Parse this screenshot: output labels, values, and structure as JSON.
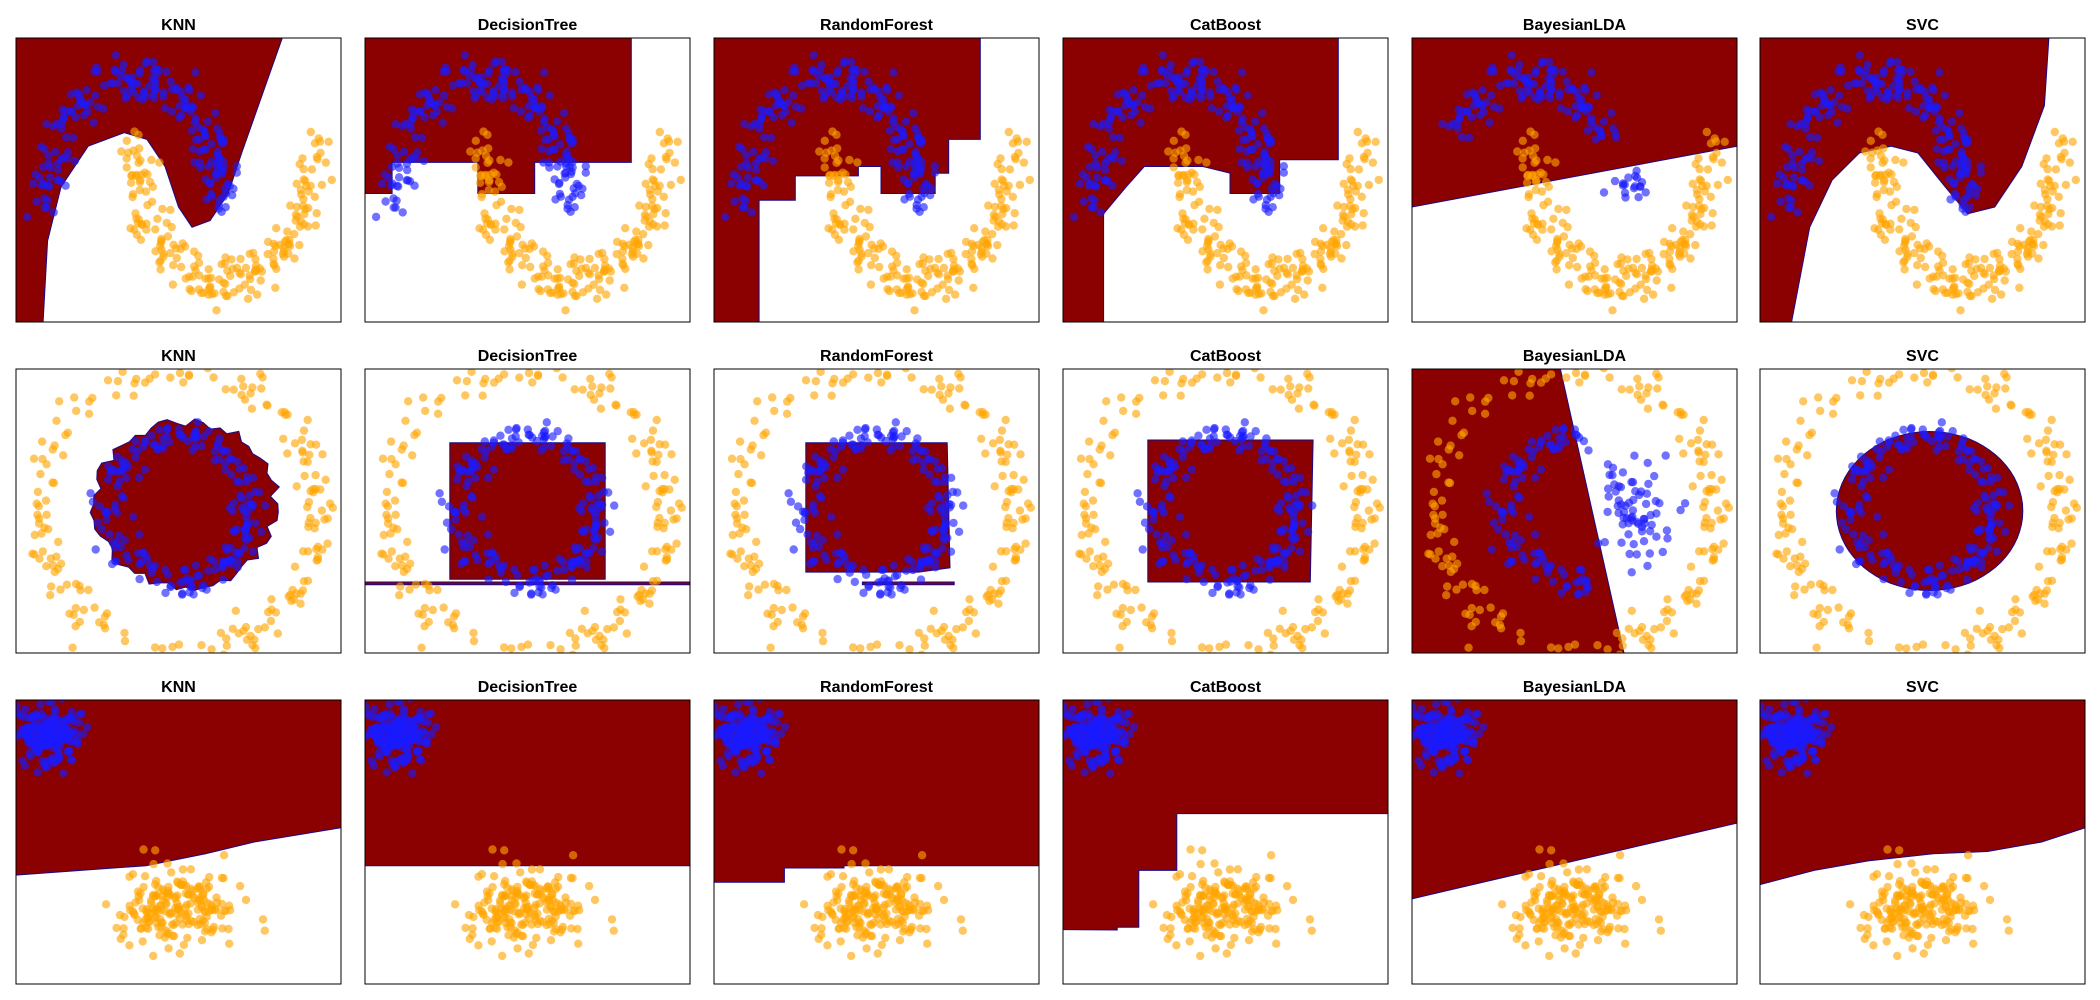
{
  "figure": {
    "colors": {
      "region": "#8b0000",
      "class_a": "#1a1aff",
      "class_b": "#ffa500",
      "frame": "#000000",
      "background": "#ffffff"
    }
  },
  "chart_data": [
    {
      "type": "scatter",
      "title": "KNN",
      "dataset": "moons",
      "boundary": "knn_moons",
      "xlim": [
        -1.3,
        2.3
      ],
      "ylim": [
        -0.8,
        1.3
      ],
      "grid": false
    },
    {
      "type": "scatter",
      "title": "DecisionTree",
      "dataset": "moons",
      "boundary": "tree_moons",
      "xlim": [
        -1.3,
        2.3
      ],
      "ylim": [
        -0.8,
        1.3
      ],
      "grid": false
    },
    {
      "type": "scatter",
      "title": "RandomForest",
      "dataset": "moons",
      "boundary": "forest_moons",
      "xlim": [
        -1.3,
        2.3
      ],
      "ylim": [
        -0.8,
        1.3
      ],
      "grid": false
    },
    {
      "type": "scatter",
      "title": "CatBoost",
      "dataset": "moons",
      "boundary": "catboost_moons",
      "xlim": [
        -1.3,
        2.3
      ],
      "ylim": [
        -0.8,
        1.3
      ],
      "grid": false
    },
    {
      "type": "scatter",
      "title": "BayesianLDA",
      "dataset": "moons",
      "boundary": "lda_moons",
      "xlim": [
        -1.3,
        2.3
      ],
      "ylim": [
        -0.8,
        1.3
      ],
      "grid": false
    },
    {
      "type": "scatter",
      "title": "SVC",
      "dataset": "moons",
      "boundary": "svc_moons",
      "xlim": [
        -1.3,
        2.3
      ],
      "ylim": [
        -0.8,
        1.3
      ],
      "grid": false
    },
    {
      "type": "scatter",
      "title": "KNN",
      "dataset": "circles",
      "boundary": "knn_circles",
      "xlim": [
        -1.15,
        1.15
      ],
      "ylim": [
        -1.0,
        1.0
      ],
      "grid": false
    },
    {
      "type": "scatter",
      "title": "DecisionTree",
      "dataset": "circles",
      "boundary": "tree_circles",
      "xlim": [
        -1.15,
        1.15
      ],
      "ylim": [
        -1.0,
        1.0
      ],
      "grid": false
    },
    {
      "type": "scatter",
      "title": "RandomForest",
      "dataset": "circles",
      "boundary": "forest_circles",
      "xlim": [
        -1.15,
        1.15
      ],
      "ylim": [
        -1.0,
        1.0
      ],
      "grid": false
    },
    {
      "type": "scatter",
      "title": "CatBoost",
      "dataset": "circles",
      "boundary": "catboost_circles",
      "xlim": [
        -1.15,
        1.15
      ],
      "ylim": [
        -1.0,
        1.0
      ],
      "grid": false
    },
    {
      "type": "scatter",
      "title": "BayesianLDA",
      "dataset": "circles",
      "boundary": "lda_circles",
      "xlim": [
        -1.15,
        1.15
      ],
      "ylim": [
        -1.0,
        1.0
      ],
      "grid": false
    },
    {
      "type": "scatter",
      "title": "SVC",
      "dataset": "circles",
      "boundary": "svc_circles",
      "xlim": [
        -1.15,
        1.15
      ],
      "ylim": [
        -1.0,
        1.0
      ],
      "grid": false
    },
    {
      "type": "scatter",
      "title": "KNN",
      "dataset": "blobs",
      "boundary": "knn_blobs",
      "xlim": [
        -3.0,
        3.0
      ],
      "ylim": [
        -3.0,
        3.0
      ],
      "grid": false
    },
    {
      "type": "scatter",
      "title": "DecisionTree",
      "dataset": "blobs",
      "boundary": "tree_blobs",
      "xlim": [
        -3.0,
        3.0
      ],
      "ylim": [
        -3.0,
        3.0
      ],
      "grid": false
    },
    {
      "type": "scatter",
      "title": "RandomForest",
      "dataset": "blobs",
      "boundary": "forest_blobs",
      "xlim": [
        -3.0,
        3.0
      ],
      "ylim": [
        -3.0,
        3.0
      ],
      "grid": false
    },
    {
      "type": "scatter",
      "title": "CatBoost",
      "dataset": "blobs",
      "boundary": "catboost_blobs",
      "xlim": [
        -3.0,
        3.0
      ],
      "ylim": [
        -3.0,
        3.0
      ],
      "grid": false
    },
    {
      "type": "scatter",
      "title": "BayesianLDA",
      "dataset": "blobs",
      "boundary": "lda_blobs",
      "xlim": [
        -3.0,
        3.0
      ],
      "ylim": [
        -3.0,
        3.0
      ],
      "grid": false
    },
    {
      "type": "scatter",
      "title": "SVC",
      "dataset": "blobs",
      "boundary": "svc_blobs",
      "xlim": [
        -3.0,
        3.0
      ],
      "ylim": [
        -3.0,
        3.0
      ],
      "grid": false
    }
  ]
}
